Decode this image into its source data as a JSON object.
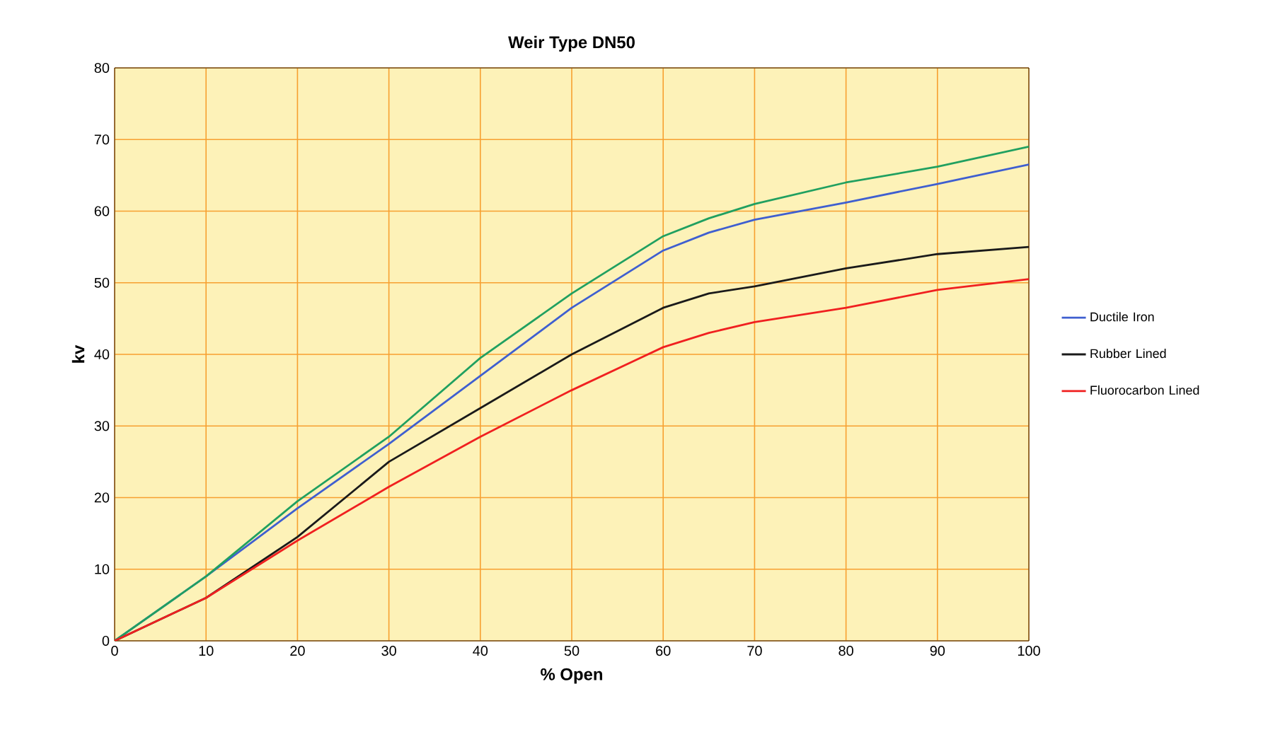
{
  "chart_data": {
    "type": "line",
    "title": "Weir Type DN50",
    "xlabel": "% Open",
    "ylabel": "kv",
    "x": [
      0,
      10,
      20,
      30,
      40,
      50,
      60,
      65,
      70,
      80,
      90,
      100
    ],
    "series": [
      {
        "name": "Ductile Iron",
        "color": "#3f5fd0",
        "values": [
          0,
          9,
          18.5,
          27.5,
          37,
          46.5,
          54.5,
          57,
          58.8,
          61.2,
          63.8,
          66.5
        ]
      },
      {
        "name": "Rubber Lined",
        "color": "#1a1a1a",
        "values": [
          0,
          6,
          14.5,
          25,
          32.5,
          40,
          46.5,
          48.5,
          49.5,
          52,
          54,
          55
        ]
      },
      {
        "color": "#20a060",
        "values": [
          0,
          9,
          19.5,
          28.5,
          39.5,
          48.5,
          56.5,
          59,
          61,
          64,
          66.2,
          69
        ]
      },
      {
        "name": "Fluorocarbon Lined",
        "color": "#f02020",
        "values": [
          0,
          6,
          14,
          21.5,
          28.5,
          35,
          41,
          43,
          44.5,
          46.5,
          49,
          50.5
        ]
      }
    ],
    "xlim": [
      0,
      100
    ],
    "ylim": [
      0,
      80
    ],
    "xticks": [
      0,
      10,
      20,
      30,
      40,
      50,
      60,
      70,
      80,
      90,
      100
    ],
    "yticks": [
      0,
      10,
      20,
      30,
      40,
      50,
      60,
      70,
      80
    ],
    "grid": true,
    "legend": "right",
    "marker": "none",
    "line_style": "solid"
  }
}
